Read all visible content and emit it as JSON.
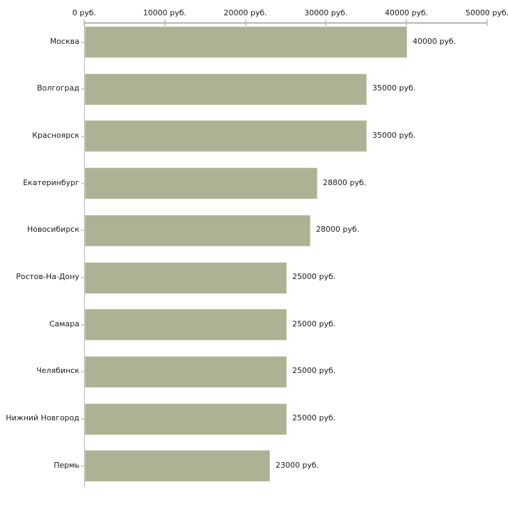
{
  "chart_data": {
    "type": "bar",
    "orientation": "horizontal",
    "title": "",
    "unit": "руб.",
    "categories": [
      "Москва",
      "Волгоград",
      "Красноярск",
      "Екатеринбург",
      "Новосибирск",
      "Ростов-На-Дону",
      "Самара",
      "Челябинск",
      "Нижний Новгород",
      "Пермь"
    ],
    "values": [
      40000,
      35000,
      35000,
      28800,
      28000,
      25000,
      25000,
      25000,
      25000,
      23000
    ],
    "bar_labels": [
      "40000 руб.",
      "35000 руб.",
      "35000 руб.",
      "28800 руб.",
      "28000 руб.",
      "25000 руб.",
      "25000 руб.",
      "25000 руб.",
      "25000 руб.",
      "23000 руб."
    ],
    "x_axis": {
      "position": "top",
      "range": [
        0,
        50000
      ],
      "ticks": [
        0,
        10000,
        20000,
        30000,
        40000,
        50000
      ],
      "tick_labels": [
        "0 руб.",
        "10000 руб.",
        "20000 руб.",
        "30000 руб.",
        "40000 руб.",
        "50000 руб."
      ]
    },
    "grid": false,
    "legend": false,
    "colors": {
      "bar_fill": "#adb295",
      "bar_border": "#c6caaf",
      "axis_line": "#b5b5b5",
      "tick_mark": "#cfcda6",
      "text": "#1a1a1a",
      "background": "#ffffff"
    }
  }
}
